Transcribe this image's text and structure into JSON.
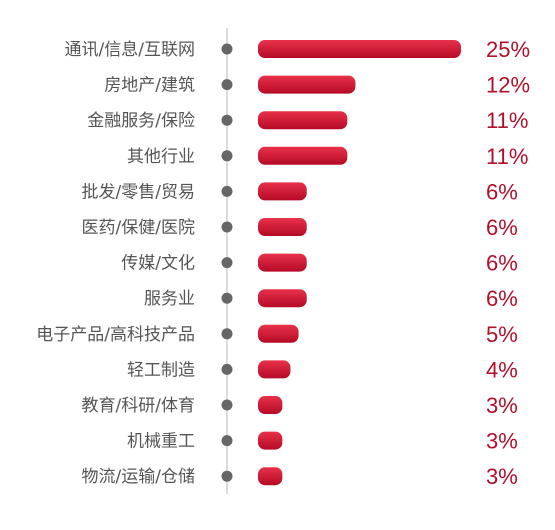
{
  "chart_data": {
    "type": "bar",
    "orientation": "horizontal",
    "categories": [
      "通讯/信息/互联网",
      "房地产/建筑",
      "金融服务/保险",
      "其他行业",
      "批发/零售/贸易",
      "医药/保健/医院",
      "传媒/文化",
      "服务业",
      "电子产品/高科技产品",
      "轻工制造",
      "教育/科研/体育",
      "机械重工",
      "物流/运输/仓储"
    ],
    "values": [
      25,
      12,
      11,
      11,
      6,
      6,
      6,
      6,
      5,
      4,
      3,
      3,
      3
    ],
    "value_labels": [
      "25%",
      "12%",
      "11%",
      "11%",
      "6%",
      "6%",
      "6%",
      "6%",
      "5%",
      "4%",
      "3%",
      "3%",
      "3%"
    ],
    "unit": "%",
    "xlim": [
      0,
      25
    ],
    "grid": false,
    "legend": "none",
    "title": "",
    "xlabel": "",
    "ylabel": ""
  },
  "colors": {
    "bar_dark": "#b50a26",
    "bar_light": "#e8314a",
    "value_label": "#b0102a",
    "category_label": "#555555",
    "dot": "#666666",
    "axis": "#cfcfcf"
  }
}
